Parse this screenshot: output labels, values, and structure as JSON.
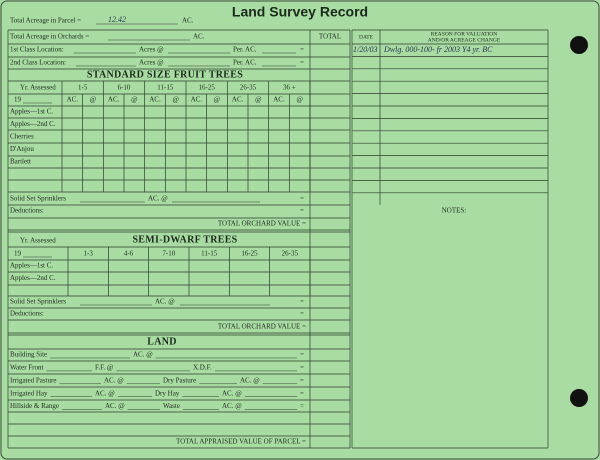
{
  "header": {
    "title": "Land Survey Record"
  },
  "parcel": {
    "label": "Total Acreage in Parcel =",
    "handwritten": "12.42",
    "unit": "AC."
  },
  "orchards": {
    "label": "Total Acreage in Orchards =",
    "unit": "AC."
  },
  "locations": [
    {
      "label": "1st Class Location:",
      "acres": "Acres @",
      "per": "Per. AC.",
      "eq": "="
    },
    {
      "label": "2nd Class Location:",
      "acres": "Acres @",
      "per": "Per. AC.",
      "eq": "="
    }
  ],
  "standard": {
    "title": "STANDARD SIZE FRUIT TREES",
    "year_label": "Yr. Assessed",
    "year": "19",
    "brackets": [
      "1-5",
      "6-10",
      "11-15",
      "16-25",
      "26-35",
      "36 +"
    ],
    "sub": [
      "AC.",
      "@"
    ],
    "rows": [
      "Apples—1st C.",
      "Apples—2nd C.",
      "Cherries",
      "D'Anjou",
      "Bartlett"
    ],
    "sprinklers": "Solid Set Sprinklers",
    "sprinklers_unit": "AC. @",
    "deductions": "Deductions:",
    "eq": "=",
    "total": "TOTAL ORCHARD VALUE ="
  },
  "semi": {
    "title": "SEMI-DWARF TREES",
    "year_label": "Yr. Assessed",
    "year": "19",
    "brackets": [
      "1-3",
      "4-6",
      "7-10",
      "11-15",
      "16-25",
      "26-35"
    ],
    "rows": [
      "Apples—1st C.",
      "Apples—2nd C."
    ],
    "sprinklers": "Solid Set Sprinklers",
    "sprinklers_unit": "AC. @",
    "deductions": "Deductions:",
    "eq": "=",
    "total": "TOTAL ORCHARD VALUE ="
  },
  "land": {
    "title": "LAND",
    "rows": [
      [
        "Building Site",
        "AC. @",
        "="
      ],
      [
        "Water Front",
        "F.F. @",
        "X.D.F.",
        "="
      ],
      [
        "Irrigated Pasture",
        "AC. @",
        "Dry Pasture",
        "AC. @",
        "="
      ],
      [
        "Irrigated Hay",
        "AC. @",
        "Dry Hay",
        "AC. @",
        "="
      ],
      [
        "Hillside & Range",
        "AC. @",
        "Waste",
        "AC. @",
        "="
      ]
    ],
    "total": "TOTAL APPRAISED VALUE OF PARCEL ="
  },
  "right": {
    "total": "TOTAL",
    "date": "DATE",
    "reason": [
      "REASON FOR VALUATION",
      "AND/OR ACREAGE CHANGE"
    ],
    "entry": {
      "date": "1/20/03",
      "text": "Dwlg. 000-100- fr 2003 Y4 yr. BC"
    },
    "notes": "NOTES:"
  }
}
